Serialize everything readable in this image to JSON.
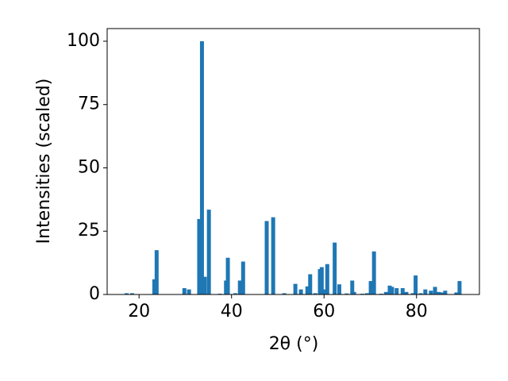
{
  "chart_data": {
    "type": "bar",
    "color": "#1f77b4",
    "x_label": "2θ (°)",
    "y_label": "Intensities (scaled)",
    "x": [
      17.3,
      18.5,
      23.3,
      23.8,
      29.8,
      30.8,
      33.0,
      33.6,
      34.2,
      35.1,
      37.5,
      38.8,
      39.2,
      40.8,
      41.8,
      42.5,
      47.6,
      49.0,
      51.4,
      53.8,
      55.0,
      56.4,
      57.0,
      58.1,
      59.1,
      59.5,
      60.2,
      60.7,
      62.3,
      63.3,
      64.9,
      66.1,
      66.5,
      68.3,
      69.3,
      70.1,
      70.8,
      72.4,
      73.4,
      74.2,
      74.7,
      75.7,
      77.0,
      77.8,
      79.2,
      79.8,
      80.9,
      81.9,
      83.1,
      84.0,
      84.8,
      85.4,
      86.2,
      88.6,
      89.3
    ],
    "values": [
      0.5,
      0.5,
      6,
      17.5,
      2.5,
      2,
      29.8,
      100,
      7,
      33.5,
      0.3,
      5.5,
      14.5,
      0.5,
      5.5,
      13,
      29,
      30.5,
      0.5,
      4.2,
      2,
      3.2,
      8,
      0.5,
      10,
      10.8,
      2,
      12,
      20.5,
      4,
      0.4,
      5.5,
      1,
      0.3,
      0.5,
      5.3,
      17,
      0.3,
      1,
      3.5,
      3,
      2.5,
      2.5,
      1,
      0.5,
      7.5,
      0.5,
      2,
      1.5,
      3,
      1,
      0.8,
      1.5,
      0.8,
      5.3
    ],
    "xlim": [
      13.1,
      93.6
    ],
    "xticks": [
      20,
      40,
      60,
      80
    ],
    "ylim": [
      0,
      105
    ],
    "yticks": [
      0,
      25,
      50,
      75,
      100
    ]
  }
}
